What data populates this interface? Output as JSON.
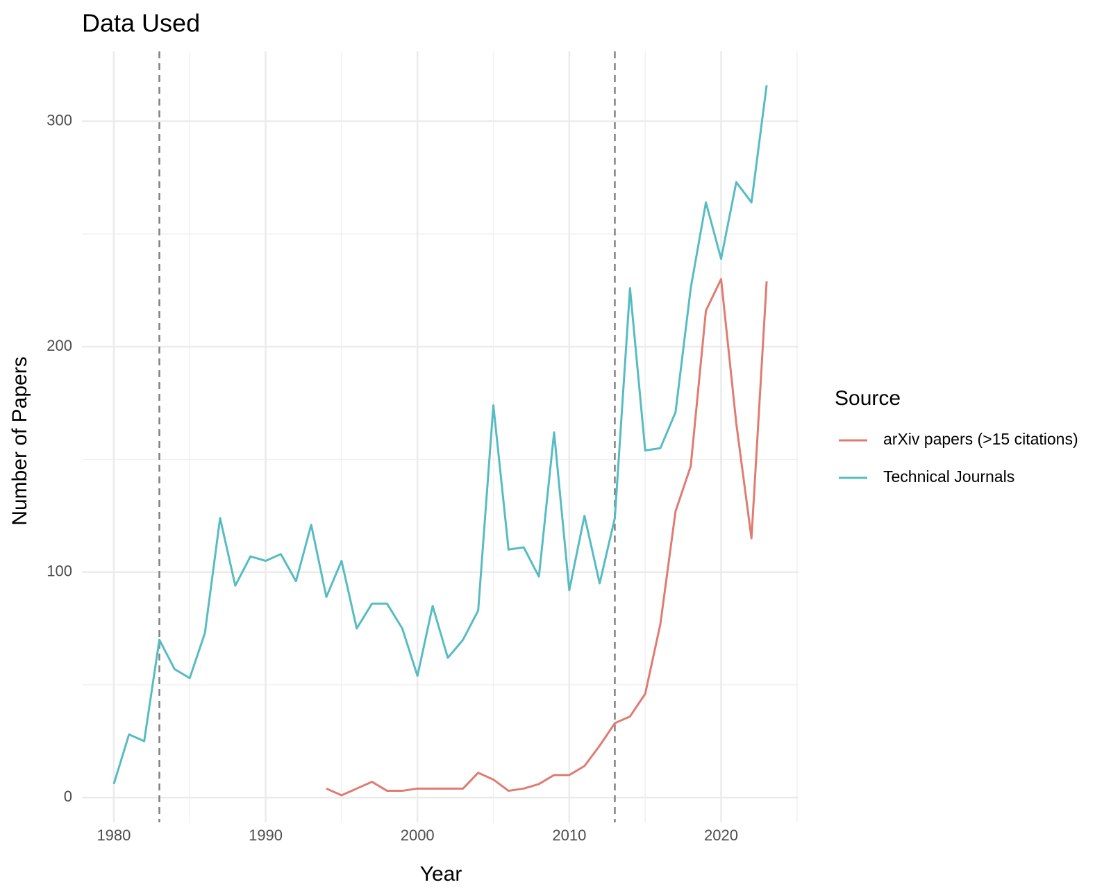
{
  "chart_data": {
    "type": "line",
    "title": "Data Used",
    "x_label": "Year",
    "y_label": "Number of Papers",
    "legend_title": "Source",
    "x": [
      1980,
      1981,
      1982,
      1983,
      1984,
      1985,
      1986,
      1987,
      1988,
      1989,
      1990,
      1991,
      1992,
      1993,
      1994,
      1995,
      1996,
      1997,
      1998,
      1999,
      2000,
      2001,
      2002,
      2003,
      2004,
      2005,
      2006,
      2007,
      2008,
      2009,
      2010,
      2011,
      2012,
      2013,
      2014,
      2015,
      2016,
      2017,
      2018,
      2019,
      2020,
      2021,
      2022,
      2023
    ],
    "series": [
      {
        "name": "arXiv papers (>15 citations)",
        "color": "#e07b72",
        "values": [
          null,
          null,
          null,
          null,
          null,
          null,
          null,
          null,
          null,
          null,
          null,
          null,
          null,
          null,
          4,
          1,
          4,
          7,
          3,
          3,
          4,
          4,
          4,
          4,
          11,
          8,
          3,
          4,
          6,
          10,
          10,
          14,
          23,
          33,
          36,
          46,
          77,
          127,
          147,
          216,
          230,
          166,
          115,
          229
        ]
      },
      {
        "name": "Technical Journals",
        "color": "#56bcc2",
        "values": [
          6,
          28,
          25,
          70,
          57,
          53,
          73,
          124,
          94,
          107,
          105,
          108,
          96,
          121,
          89,
          105,
          75,
          86,
          86,
          75,
          54,
          85,
          62,
          70,
          83,
          174,
          110,
          111,
          98,
          162,
          92,
          125,
          95,
          124,
          226,
          154,
          155,
          171,
          226,
          264,
          239,
          273,
          264,
          316
        ]
      }
    ],
    "vlines": [
      1983,
      2013
    ],
    "xlim": [
      1977.9,
      2025.1
    ],
    "xticks": [
      1980,
      1990,
      2000,
      2010,
      2020
    ],
    "xminor": [
      1985,
      1995,
      2005,
      2015,
      2025
    ],
    "ylim": [
      -11,
      331
    ],
    "yticks": [
      0,
      100,
      200,
      300
    ],
    "yminor": [
      50,
      150,
      250
    ],
    "grid": true
  }
}
